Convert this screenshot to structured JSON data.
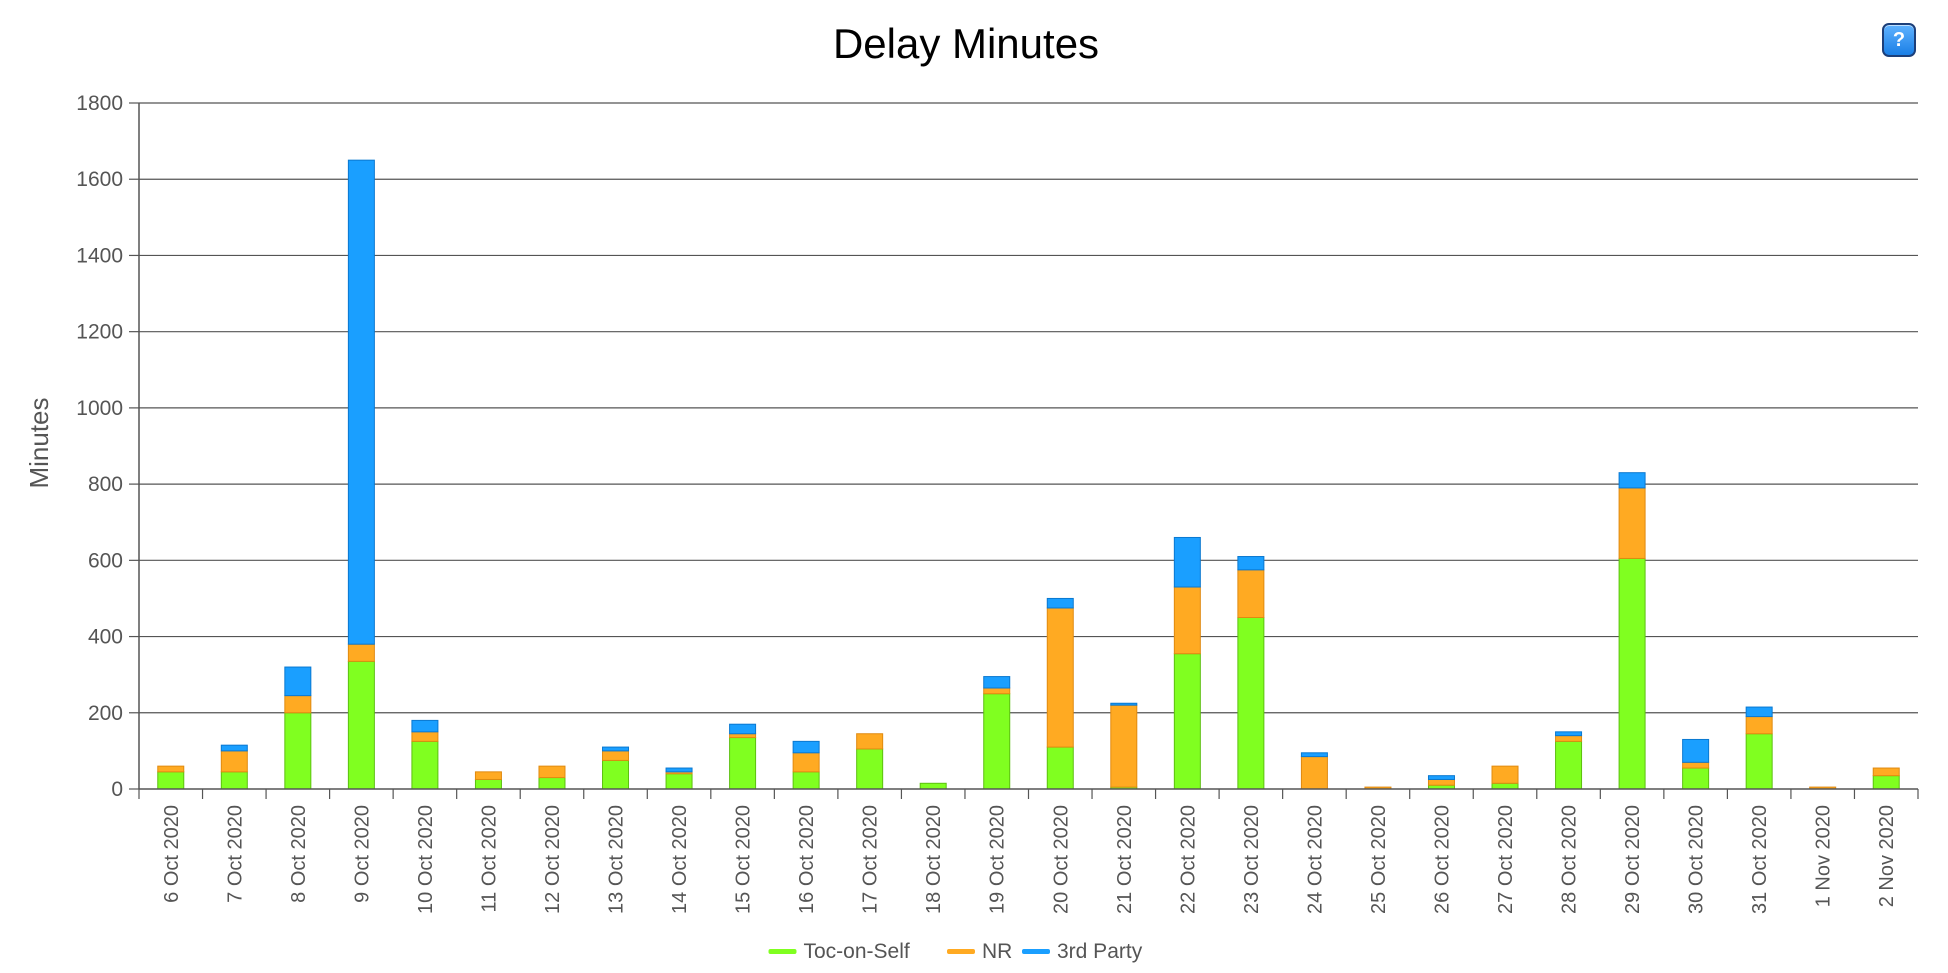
{
  "chart_data": {
    "type": "bar",
    "stacked": true,
    "title": "Delay Minutes",
    "xlabel": "",
    "ylabel": "Minutes",
    "ylim": [
      0,
      1800
    ],
    "yticks": [
      0,
      200,
      400,
      600,
      800,
      1000,
      1200,
      1400,
      1600,
      1800
    ],
    "grid": true,
    "legend_position": "bottom",
    "categories": [
      "6 Oct 2020",
      "7 Oct 2020",
      "8 Oct 2020",
      "9 Oct 2020",
      "10 Oct 2020",
      "11 Oct 2020",
      "12 Oct 2020",
      "13 Oct 2020",
      "14 Oct 2020",
      "15 Oct 2020",
      "16 Oct 2020",
      "17 Oct 2020",
      "18 Oct 2020",
      "19 Oct 2020",
      "20 Oct 2020",
      "21 Oct 2020",
      "22 Oct 2020",
      "23 Oct 2020",
      "24 Oct 2020",
      "25 Oct 2020",
      "26 Oct 2020",
      "27 Oct 2020",
      "28 Oct 2020",
      "29 Oct 2020",
      "30 Oct 2020",
      "31 Oct 2020",
      "1 Nov 2020",
      "2 Nov 2020"
    ],
    "series": [
      {
        "name": "Toc-on-Self",
        "color": "#80ff20",
        "border": "#5cc010",
        "values": [
          45,
          45,
          200,
          335,
          125,
          25,
          30,
          75,
          40,
          135,
          45,
          105,
          15,
          250,
          110,
          5,
          355,
          450,
          0,
          0,
          10,
          15,
          125,
          605,
          55,
          145,
          0,
          35
        ]
      },
      {
        "name": "NR",
        "color": "#ffaa22",
        "border": "#e08a10",
        "values": [
          15,
          55,
          45,
          45,
          25,
          20,
          30,
          25,
          5,
          10,
          50,
          40,
          0,
          15,
          365,
          215,
          175,
          125,
          85,
          5,
          15,
          45,
          15,
          185,
          15,
          45,
          5,
          20
        ]
      },
      {
        "name": "3rd Party",
        "color": "#1a9fff",
        "border": "#0a78d0",
        "values": [
          0,
          15,
          75,
          1270,
          30,
          0,
          0,
          10,
          10,
          25,
          30,
          0,
          0,
          30,
          25,
          5,
          130,
          35,
          10,
          0,
          10,
          0,
          10,
          40,
          60,
          25,
          0,
          0
        ]
      }
    ]
  },
  "ui": {
    "help_button_label": "?"
  }
}
